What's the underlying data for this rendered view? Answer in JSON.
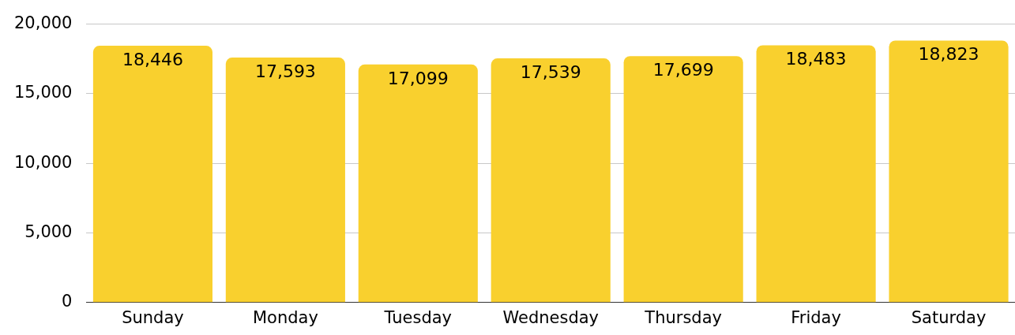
{
  "chart_data": {
    "type": "bar",
    "categories": [
      "Sunday",
      "Monday",
      "Tuesday",
      "Wednesday",
      "Thursday",
      "Friday",
      "Saturday"
    ],
    "values": [
      18446,
      17593,
      17099,
      17539,
      17699,
      18483,
      18823
    ],
    "color": "#f9d02e",
    "ylim": [
      0,
      20000
    ],
    "yticks": [
      {
        "value": 0,
        "label": "0"
      },
      {
        "value": 5000,
        "label": "5,000"
      },
      {
        "value": 10000,
        "label": "10,000"
      },
      {
        "value": 15000,
        "label": "15,000"
      },
      {
        "value": 20000,
        "label": "20,000"
      }
    ],
    "value_labels": [
      "18,446",
      "17,593",
      "17,099",
      "17,539",
      "17,699",
      "18,483",
      "18,823"
    ],
    "grid": "y",
    "legend": false
  }
}
